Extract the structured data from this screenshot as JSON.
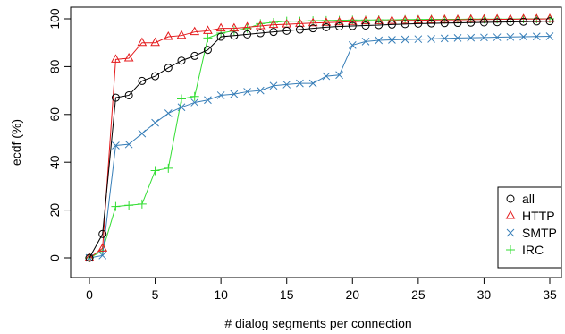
{
  "chart_data": {
    "type": "line",
    "title": "",
    "xlabel": "# dialog segments per connection",
    "ylabel": "ecdf (%)",
    "xlim": [
      0,
      35
    ],
    "ylim": [
      0,
      100
    ],
    "xticks": [
      0,
      5,
      10,
      15,
      20,
      25,
      30,
      35
    ],
    "yticks": [
      0,
      20,
      40,
      60,
      80,
      100
    ],
    "grid": false,
    "legend_position": "bottom-right",
    "x": [
      0,
      1,
      2,
      3,
      4,
      5,
      6,
      7,
      8,
      9,
      10,
      11,
      12,
      13,
      14,
      15,
      16,
      17,
      18,
      19,
      20,
      21,
      22,
      23,
      24,
      25,
      26,
      27,
      28,
      29,
      30,
      31,
      32,
      33,
      34,
      35
    ],
    "series": [
      {
        "name": "all",
        "color": "#000000",
        "marker": "circle",
        "values": [
          0,
          10,
          67,
          68,
          74,
          76,
          79.5,
          82.5,
          84.5,
          87,
          92.5,
          93,
          93.5,
          94,
          94.5,
          95,
          95.5,
          96,
          96.5,
          96.8,
          97,
          97.2,
          97.4,
          97.6,
          97.8,
          98,
          98.1,
          98.2,
          98.3,
          98.4,
          98.5,
          98.6,
          98.7,
          98.8,
          98.9,
          99
        ]
      },
      {
        "name": "HTTP",
        "color": "#e41a1c",
        "marker": "triangle",
        "values": [
          0,
          4,
          83,
          83.5,
          90,
          90,
          92.5,
          93,
          94.5,
          95,
          96,
          96,
          96.5,
          97,
          97.5,
          97.7,
          98,
          98.2,
          98.4,
          98.6,
          98.8,
          99,
          99.1,
          99.2,
          99.3,
          99.4,
          99.5,
          99.6,
          99.6,
          99.7,
          99.7,
          99.8,
          99.8,
          99.9,
          99.9,
          100
        ]
      },
      {
        "name": "SMTP",
        "color": "#377eb8",
        "marker": "x",
        "values": [
          0,
          1,
          47,
          47.5,
          52,
          56.5,
          60.5,
          63,
          65,
          66,
          68,
          68.5,
          69.5,
          70,
          72,
          72.5,
          73,
          73,
          76,
          76.5,
          89,
          90.5,
          91,
          91.2,
          91.4,
          91.5,
          91.6,
          91.8,
          92,
          92.1,
          92.2,
          92.3,
          92.4,
          92.5,
          92.6,
          92.7
        ]
      },
      {
        "name": "IRC",
        "color": "#33dd33",
        "marker": "plus",
        "values": [
          0,
          3,
          21.5,
          22,
          22.5,
          36.5,
          37.5,
          66.5,
          67.5,
          92,
          94,
          95,
          96,
          98,
          98.5,
          99,
          99,
          99.2,
          99.3,
          99.4,
          99.5,
          99.5,
          99.6,
          99.6,
          99.7,
          99.7,
          99.8,
          99.8,
          99.8,
          99.9,
          99.9,
          99.9,
          99.9,
          100,
          100,
          100
        ]
      }
    ]
  }
}
